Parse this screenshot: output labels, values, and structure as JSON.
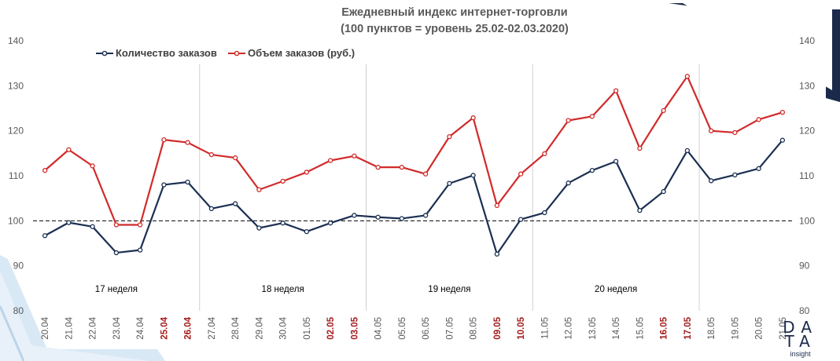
{
  "chart_data": {
    "type": "line",
    "title_lines": [
      "Ежедневный индекс интернет-торговли",
      "(100 пунктов = уровень 25.02-02.03.2020)"
    ],
    "xlabel": "",
    "ylabel": "",
    "ylim": [
      80,
      140
    ],
    "yticks": [
      80,
      90,
      100,
      110,
      120,
      130,
      140
    ],
    "grid": false,
    "legend_position": "top-left",
    "reference_line": 100,
    "categories": [
      "20.04",
      "21.04",
      "22.04",
      "23.04",
      "24.04",
      "25.04",
      "26.04",
      "27.04",
      "28.04",
      "29.04",
      "30.04",
      "01.05",
      "02.05",
      "03.05",
      "04.05",
      "05.05",
      "06.05",
      "07.05",
      "08.05",
      "09.05",
      "10.05",
      "11.05",
      "12.05",
      "13.05",
      "14.05",
      "15.05",
      "16.05",
      "17.05",
      "18.05",
      "19.05",
      "20.05",
      "21.05"
    ],
    "highlighted_categories": [
      "25.04",
      "26.04",
      "02.05",
      "03.05",
      "09.05",
      "10.05",
      "16.05",
      "17.05"
    ],
    "week_separators_after": [
      "26.04",
      "03.05",
      "10.05",
      "17.05"
    ],
    "week_labels": [
      {
        "text": "17 неделя",
        "center_category": "23.04"
      },
      {
        "text": "18 неделя",
        "center_category": "30.04"
      },
      {
        "text": "19 неделя",
        "center_category": "07.05"
      },
      {
        "text": "20 неделя",
        "center_category": "14.05"
      }
    ],
    "series": [
      {
        "name": "Количество заказов",
        "color": "#1b2f52",
        "values": [
          96.7,
          99.6,
          98.7,
          92.9,
          93.5,
          108.0,
          108.6,
          102.7,
          103.8,
          98.4,
          99.5,
          97.6,
          99.5,
          101.2,
          100.8,
          100.5,
          101.2,
          108.3,
          110.1,
          92.6,
          100.3,
          101.8,
          108.4,
          111.2,
          113.2,
          102.3,
          106.5,
          115.6,
          108.9,
          110.2,
          111.6,
          117.9
        ]
      },
      {
        "name": "Объем заказов (руб.)",
        "color": "#d12a2a",
        "values": [
          111.2,
          115.8,
          112.2,
          99.1,
          99.1,
          118.0,
          117.4,
          114.7,
          114.0,
          106.9,
          108.8,
          110.8,
          113.4,
          114.4,
          111.9,
          111.9,
          110.4,
          118.7,
          122.9,
          103.4,
          110.4,
          114.9,
          122.3,
          123.2,
          128.9,
          116.1,
          124.5,
          132.1,
          120.0,
          119.6,
          122.5,
          124.1
        ]
      }
    ]
  },
  "logo": {
    "line1": "DA",
    "line2": "TA",
    "word": "insight"
  },
  "colors": {
    "navy": "#1b2f52",
    "red": "#d12a2a",
    "accent_band": "#d9e8f5"
  }
}
